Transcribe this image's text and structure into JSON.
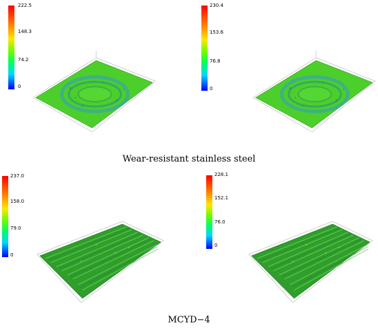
{
  "figure": {
    "captions": {
      "top": "Wear-resistant stainless steel",
      "bottom": "MCYD−4"
    },
    "panels": [
      {
        "group": "top",
        "pattern": "wear-ring",
        "colorbar": {
          "ticks": [
            "222.5",
            "148.3",
            "74.2",
            "0"
          ]
        }
      },
      {
        "group": "top",
        "pattern": "wear-ring",
        "colorbar": {
          "ticks": [
            "230.4",
            "153.6",
            "76.8",
            "0"
          ]
        }
      },
      {
        "group": "bottom",
        "pattern": "grooves",
        "colorbar": {
          "ticks": [
            "237.0",
            "158.0",
            "79.0",
            "0"
          ]
        }
      },
      {
        "group": "bottom",
        "pattern": "grooves",
        "colorbar": {
          "ticks": [
            "228.1",
            "152.1",
            "76.0",
            "0"
          ]
        }
      }
    ],
    "colormap": [
      "#ff0000",
      "#ff7a00",
      "#ffe600",
      "#66ff00",
      "#00ff66",
      "#00d6ff",
      "#0000ff"
    ]
  }
}
